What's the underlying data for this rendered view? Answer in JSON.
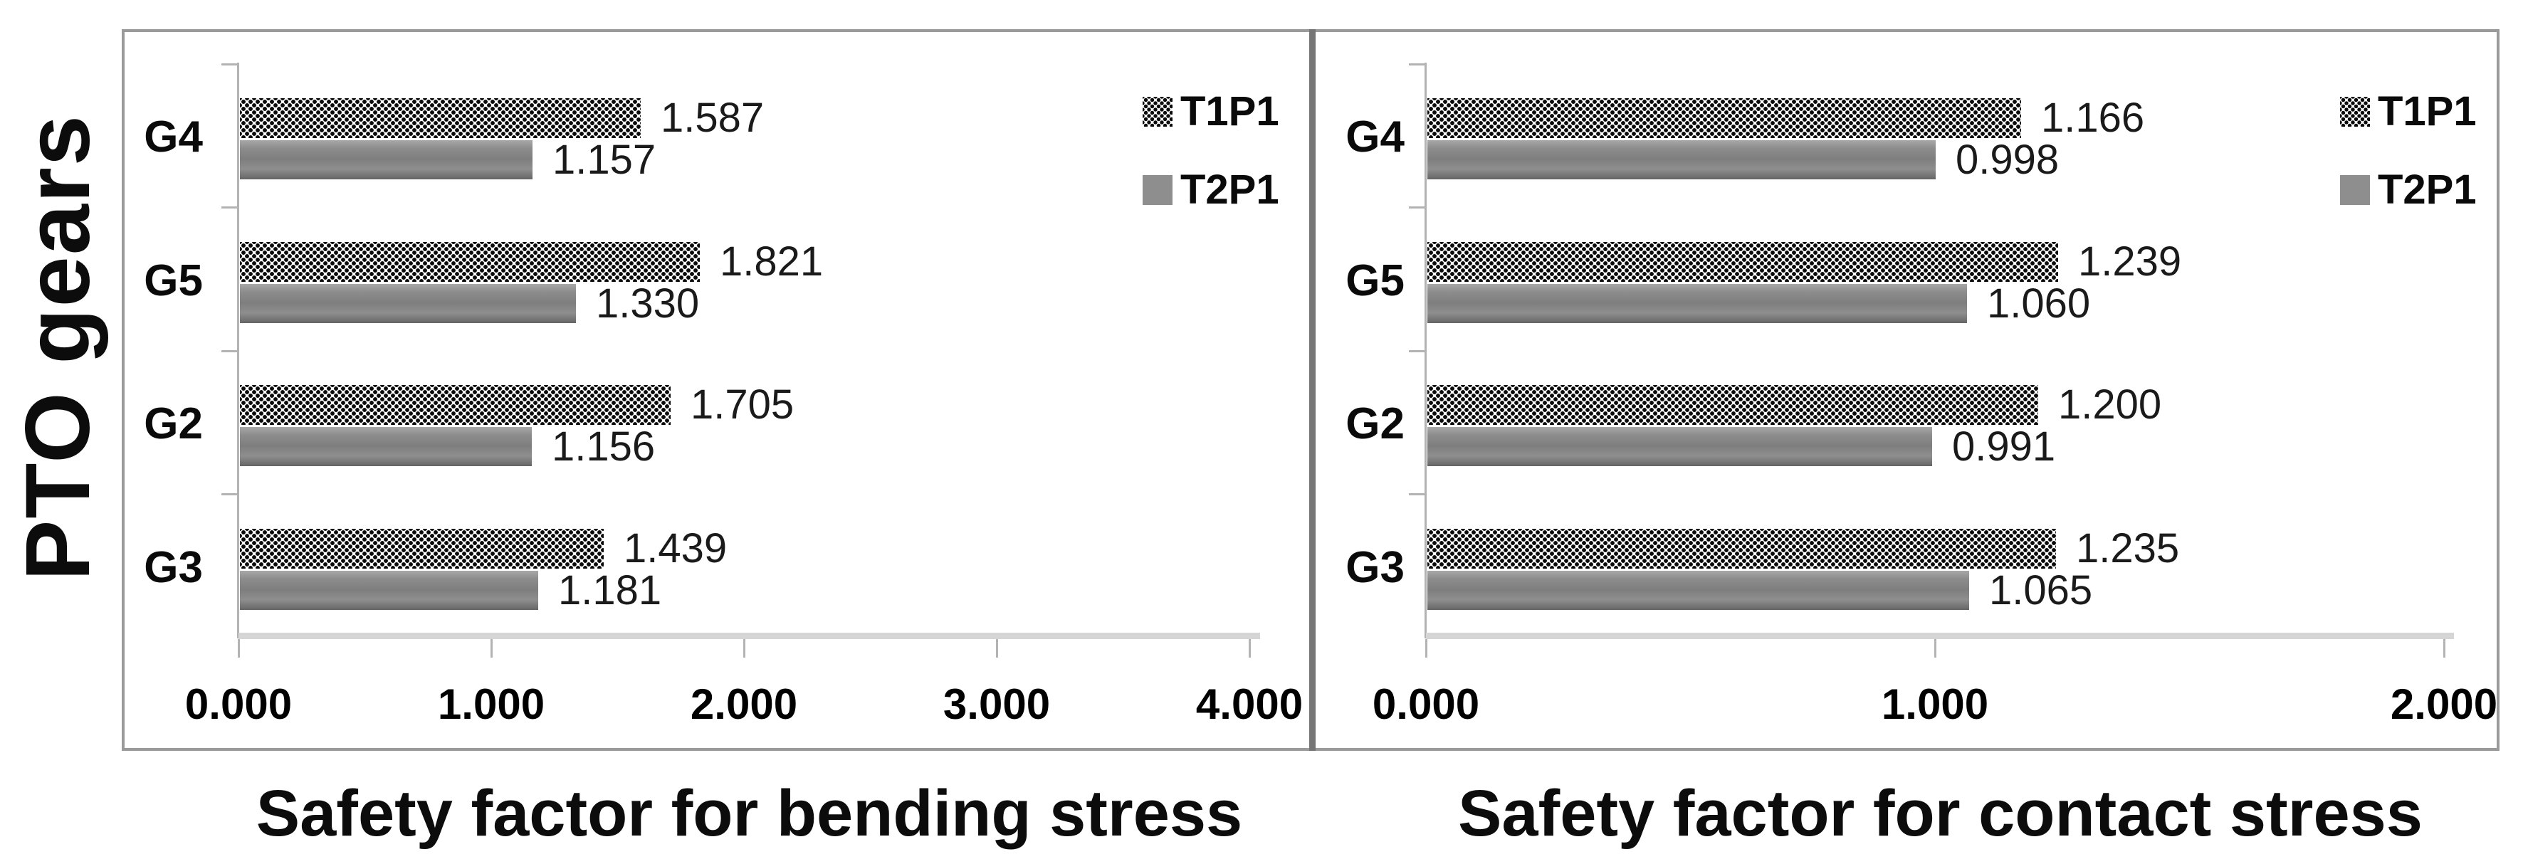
{
  "chart_shared": {
    "y_axis_title": "PTO gears",
    "categories": [
      "G4",
      "G5",
      "G2",
      "G3"
    ],
    "legend": [
      {
        "label": "T1P1",
        "swatch": "checkered"
      },
      {
        "label": "T2P1",
        "swatch": "solid-gray"
      }
    ],
    "colors": {
      "pattern_black": "#0a0a0a",
      "bar_gray": "#828282",
      "axis_gray": "#b3b3b3",
      "value_axis_band": "#d5d5d5",
      "panel_border": "#9a9a9a",
      "seam_gray": "#767676"
    }
  },
  "chart_data": [
    {
      "type": "bar",
      "orientation": "horizontal",
      "title": "Safety factor for bending stress",
      "categories": [
        "G4",
        "G5",
        "G2",
        "G3"
      ],
      "series": [
        {
          "name": "T1P1",
          "values": [
            1.587,
            1.821,
            1.705,
            1.439
          ],
          "labels": [
            "1.587",
            "1.821",
            "1.705",
            "1.439"
          ]
        },
        {
          "name": "T2P1",
          "values": [
            1.157,
            1.33,
            1.156,
            1.181
          ],
          "labels": [
            "1.157",
            "1.330",
            "1.156",
            "1.181"
          ]
        }
      ],
      "xlim": [
        0,
        4
      ],
      "x_ticks": [
        "0.000",
        "1.000",
        "2.000",
        "3.000",
        "4.000"
      ],
      "x_tick_values": [
        0,
        1,
        2,
        3,
        4
      ],
      "grid": false,
      "legend_position": "top-right"
    },
    {
      "type": "bar",
      "orientation": "horizontal",
      "title": "Safety factor for contact stress",
      "categories": [
        "G4",
        "G5",
        "G2",
        "G3"
      ],
      "series": [
        {
          "name": "T1P1",
          "values": [
            1.166,
            1.239,
            1.2,
            1.235
          ],
          "labels": [
            "1.166",
            "1.239",
            "1.200",
            "1.235"
          ]
        },
        {
          "name": "T2P1",
          "values": [
            0.998,
            1.06,
            0.991,
            1.065
          ],
          "labels": [
            "0.998",
            "1.060",
            "0.991",
            "1.065"
          ]
        }
      ],
      "xlim": [
        0,
        2
      ],
      "x_ticks": [
        "0.000",
        "1.000",
        "2.000"
      ],
      "x_tick_values": [
        0,
        1,
        2
      ],
      "grid": false,
      "legend_position": "top-right"
    }
  ]
}
